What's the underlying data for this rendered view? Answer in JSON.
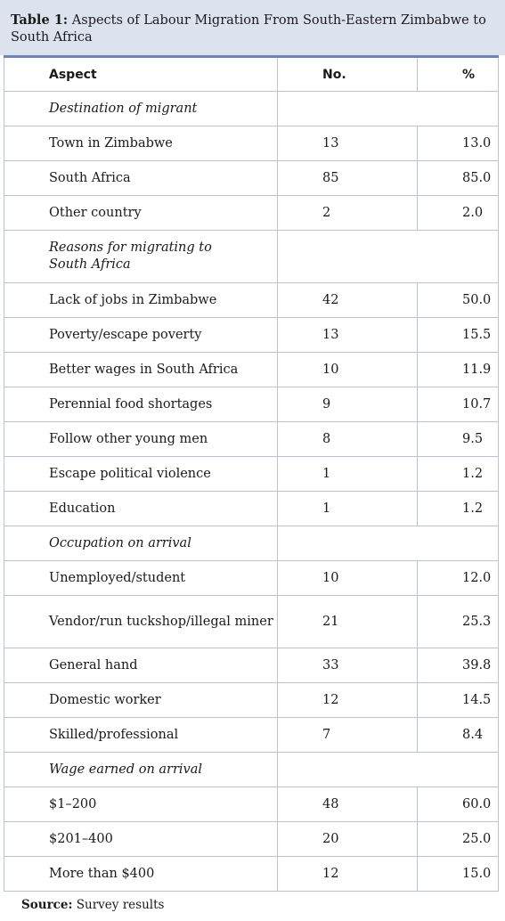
{
  "caption": {
    "label": "Table 1:",
    "text": " Aspects of Labour Migration From South-Eastern Zimbabwe to South Africa"
  },
  "header": {
    "aspect": "Aspect",
    "no": "No.",
    "pct": "%"
  },
  "sections": [
    {
      "title": "Destination of migrant",
      "rows": [
        {
          "aspect": "Town in Zimbabwe",
          "no": "13",
          "pct": "13.0"
        },
        {
          "aspect": "South Africa",
          "no": "85",
          "pct": "85.0"
        },
        {
          "aspect": "Other country",
          "no": "2",
          "pct": "2.0"
        }
      ]
    },
    {
      "title": "Reasons for migrating to South Africa",
      "rows": [
        {
          "aspect": "Lack of jobs in Zimbabwe",
          "no": "42",
          "pct": "50.0"
        },
        {
          "aspect": "Poverty/escape poverty",
          "no": "13",
          "pct": "15.5"
        },
        {
          "aspect": "Better wages in South Africa",
          "no": "10",
          "pct": "11.9"
        },
        {
          "aspect": "Perennial food shortages",
          "no": "9",
          "pct": "10.7"
        },
        {
          "aspect": "Follow other young men",
          "no": "8",
          "pct": "9.5"
        },
        {
          "aspect": "Escape political violence",
          "no": "1",
          "pct": "1.2"
        },
        {
          "aspect": "Education",
          "no": "1",
          "pct": "1.2"
        }
      ]
    },
    {
      "title": "Occupation on arrival",
      "rows": [
        {
          "aspect": "Unemployed/student",
          "no": "10",
          "pct": "12.0"
        },
        {
          "aspect": "Vendor/run tuckshop/illegal miner",
          "no": "21",
          "pct": "25.3"
        },
        {
          "aspect": "General hand",
          "no": "33",
          "pct": "39.8"
        },
        {
          "aspect": "Domestic worker",
          "no": "12",
          "pct": "14.5"
        },
        {
          "aspect": "Skilled/professional",
          "no": "7",
          "pct": "8.4"
        }
      ]
    },
    {
      "title": "Wage earned on arrival",
      "rows": [
        {
          "aspect": "$1–200",
          "no": "48",
          "pct": "60.0"
        },
        {
          "aspect": "$201–400",
          "no": "20",
          "pct": "25.0"
        },
        {
          "aspect": "More than $400",
          "no": "12",
          "pct": "15.0"
        }
      ]
    }
  ],
  "source": {
    "label": "Source:",
    "text": " Survey results"
  }
}
